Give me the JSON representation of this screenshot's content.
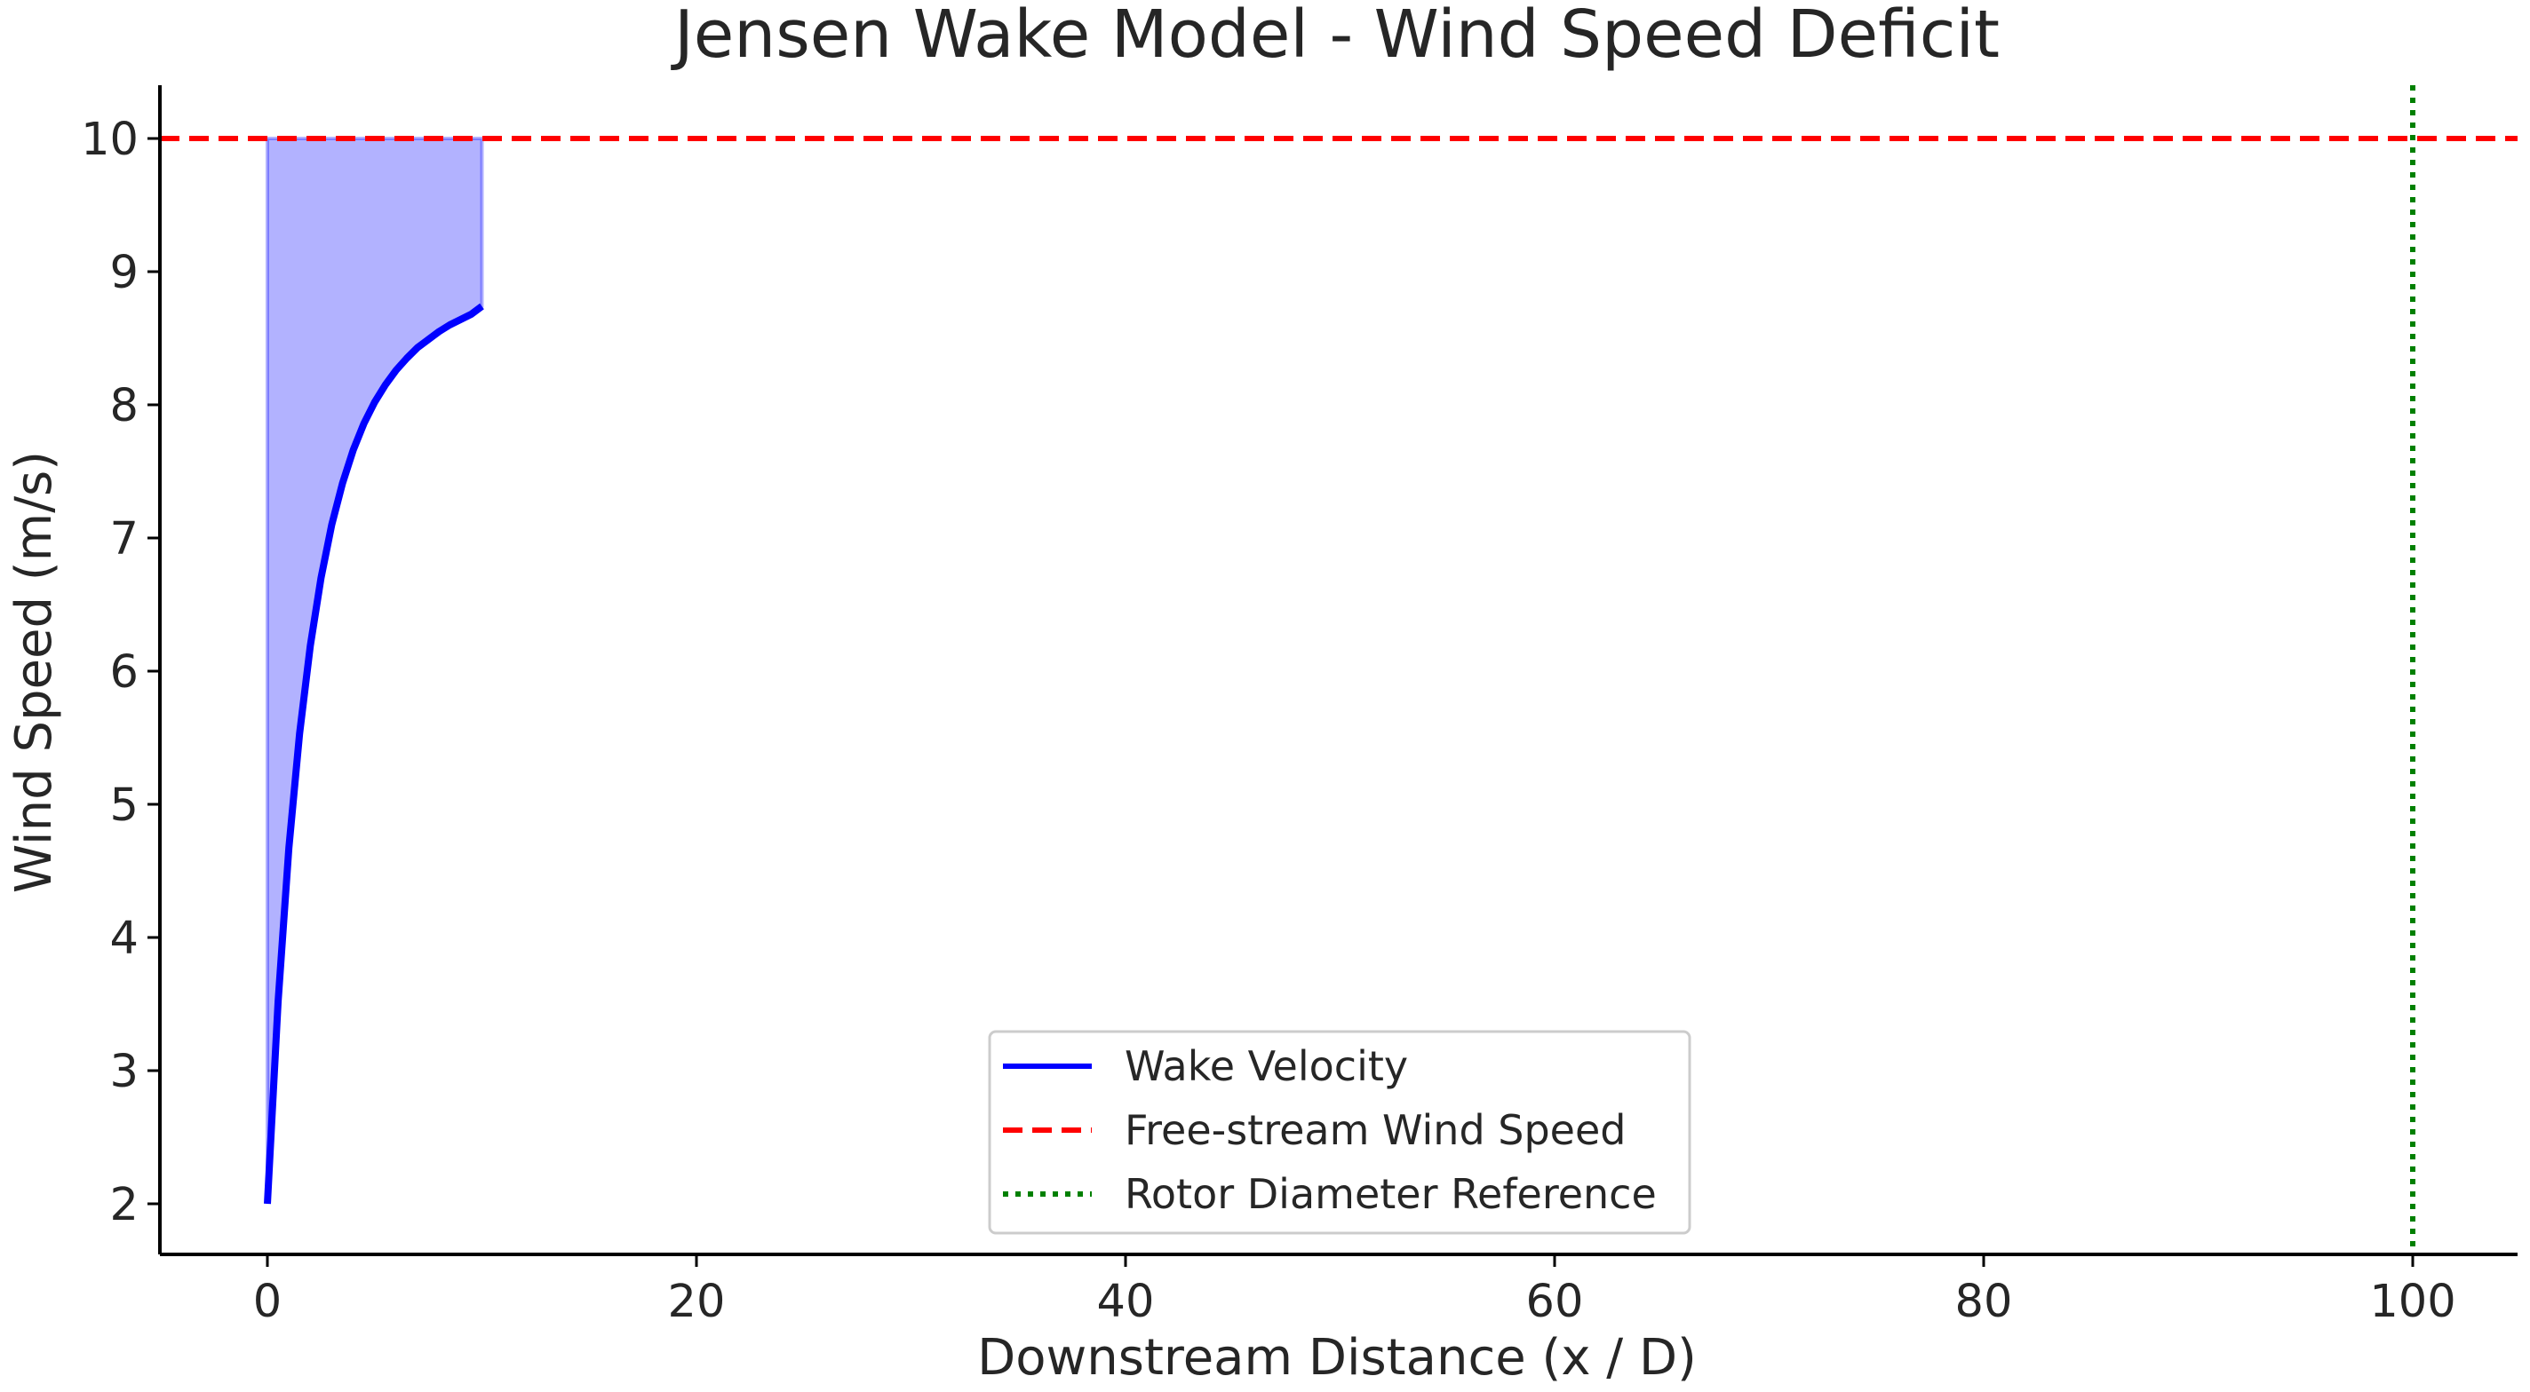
{
  "chart_data": {
    "type": "line",
    "title": "Jensen Wake Model - Wind Speed Deficit",
    "xlabel": "Downstream Distance (x / D)",
    "ylabel": "Wind Speed (m/s)",
    "xlim": [
      -5,
      105
    ],
    "ylim": [
      1.6,
      10.4
    ],
    "x_ticks": [
      0,
      20,
      40,
      60,
      80,
      100
    ],
    "x_tick_labels": [
      "0",
      "20",
      "40",
      "60",
      "80",
      "100"
    ],
    "y_ticks": [
      2,
      3,
      4,
      5,
      6,
      7,
      8,
      9,
      10
    ],
    "y_tick_labels": [
      "2",
      "3",
      "4",
      "5",
      "6",
      "7",
      "8",
      "9",
      "10"
    ],
    "grid": false,
    "legend_position": "lower-center",
    "series": [
      {
        "name": "Wake Velocity",
        "style": "solid",
        "color": "#0000ff",
        "x": [
          0,
          0.5,
          1,
          1.5,
          2,
          2.5,
          3,
          3.5,
          4,
          4.5,
          5,
          5.5,
          6,
          6.5,
          7,
          7.5,
          8,
          8.5,
          9,
          9.5,
          10
        ],
        "y": [
          2.0,
          3.52,
          4.67,
          5.53,
          6.19,
          6.7,
          7.1,
          7.41,
          7.66,
          7.86,
          8.02,
          8.15,
          8.26,
          8.35,
          8.43,
          8.49,
          8.55,
          8.6,
          8.64,
          8.68,
          8.74
        ]
      },
      {
        "name": "Free-stream Wind Speed",
        "style": "dashed",
        "color": "#ff0000",
        "y_value": 10
      },
      {
        "name": "Rotor Diameter Reference",
        "style": "dotted",
        "color": "#008000",
        "x_value": 100
      }
    ],
    "fill_between": {
      "x_range": [
        0,
        10
      ],
      "upper": 10,
      "lower_series": "Wake Velocity",
      "color": "#0000ff",
      "opacity": 0.3
    }
  }
}
